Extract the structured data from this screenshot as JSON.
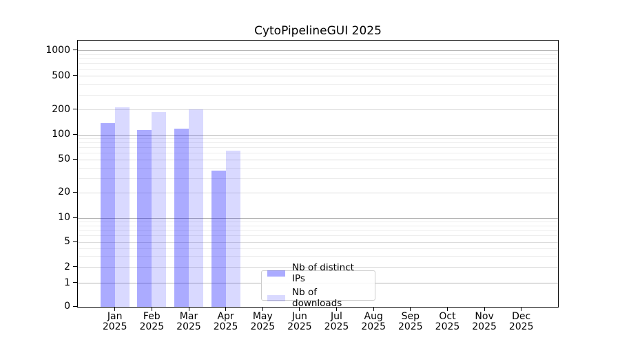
{
  "chart_data": {
    "type": "bar",
    "title": "CytoPipelineGUI 2025",
    "categories": [
      "Jan",
      "Feb",
      "Mar",
      "Apr",
      "May",
      "Jun",
      "Jul",
      "Aug",
      "Sep",
      "Oct",
      "Nov",
      "Dec"
    ],
    "category_sublabel": "2025",
    "series": [
      {
        "name": "Nb of distinct IPs",
        "color": "rgba(0,0,255,0.33)",
        "values": [
          138,
          114,
          118,
          37,
          null,
          null,
          null,
          null,
          null,
          null,
          null,
          null
        ]
      },
      {
        "name": "Nb of downloads",
        "color": "rgba(0,0,255,0.15)",
        "values": [
          213,
          188,
          204,
          65,
          null,
          null,
          null,
          null,
          null,
          null,
          null,
          null
        ]
      }
    ],
    "yscale": "symlog",
    "yticks": [
      0,
      1,
      2,
      5,
      10,
      20,
      50,
      100,
      200,
      500,
      1000
    ],
    "ylim": [
      0,
      1300
    ],
    "grid": true,
    "legend_position": "lower center"
  },
  "legend": {
    "items": [
      {
        "label": "Nb of distinct IPs",
        "color": "rgba(0,0,255,0.33)"
      },
      {
        "label": "Nb of downloads",
        "color": "rgba(0,0,255,0.15)"
      }
    ]
  },
  "colors": {
    "background": "#ffffff",
    "spine": "#000000",
    "grid_decade": "#b4b4b4",
    "grid_labeled": "#dcdcdc",
    "grid_minor": "#ececec",
    "bar_flat_dark": "#aaaaff",
    "bar_flat_light": "#d9d9ff"
  }
}
